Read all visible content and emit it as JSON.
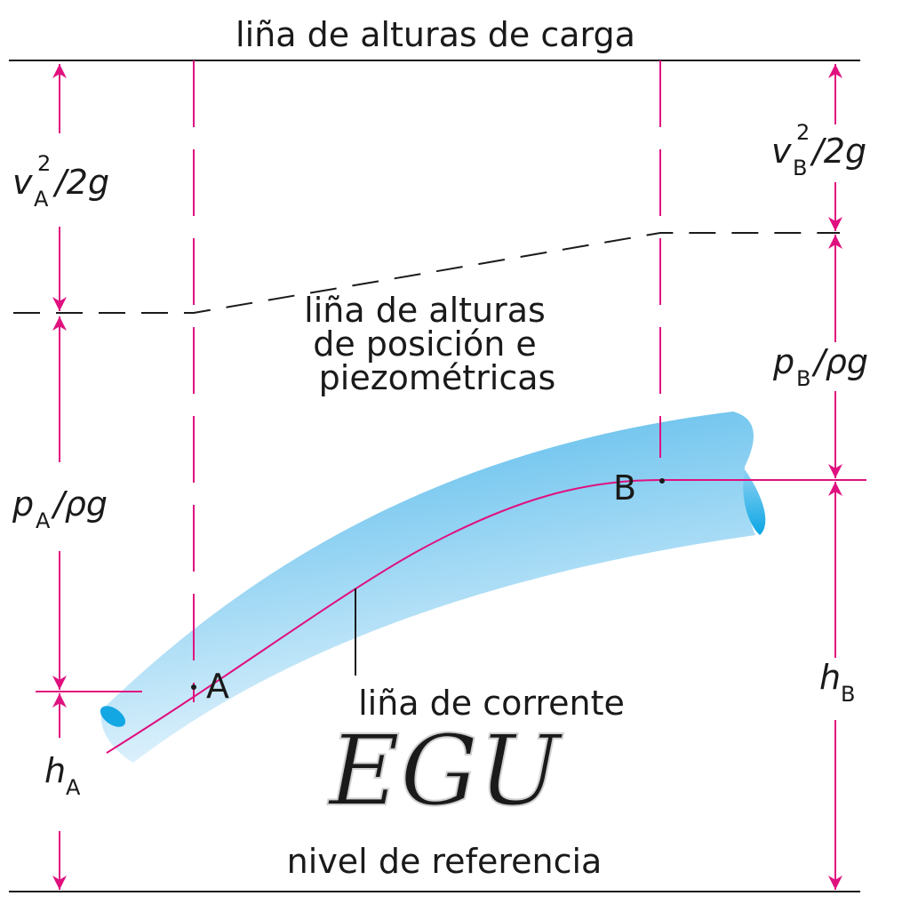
{
  "colors": {
    "accent": "#e0107f",
    "pipe": "#5bbcec",
    "ink": "#1a1a1a"
  },
  "labels": {
    "energy_line": "liña  de alturas de carga",
    "piezo_line": [
      "liña  de alturas",
      "de posición e",
      "piezométricas"
    ],
    "streamline": "liña de corrente",
    "datum": "nivel de referencia",
    "point_a": "A",
    "point_b": "B"
  },
  "quantities": {
    "va": {
      "sym": "v",
      "sub": "A",
      "sup": "2",
      "rest": "/2g"
    },
    "vb": {
      "sym": "v",
      "sub": "B",
      "sup": "2",
      "rest": "/2g"
    },
    "pa": {
      "sym": "p",
      "sub": "A",
      "rest": "/ρg"
    },
    "pb": {
      "sym": "p",
      "sub": "B",
      "rest": "/ρg"
    },
    "ha": {
      "sym": "h",
      "sub": "A"
    },
    "hb": {
      "sym": "h",
      "sub": "B"
    }
  },
  "watermark": "EGU"
}
